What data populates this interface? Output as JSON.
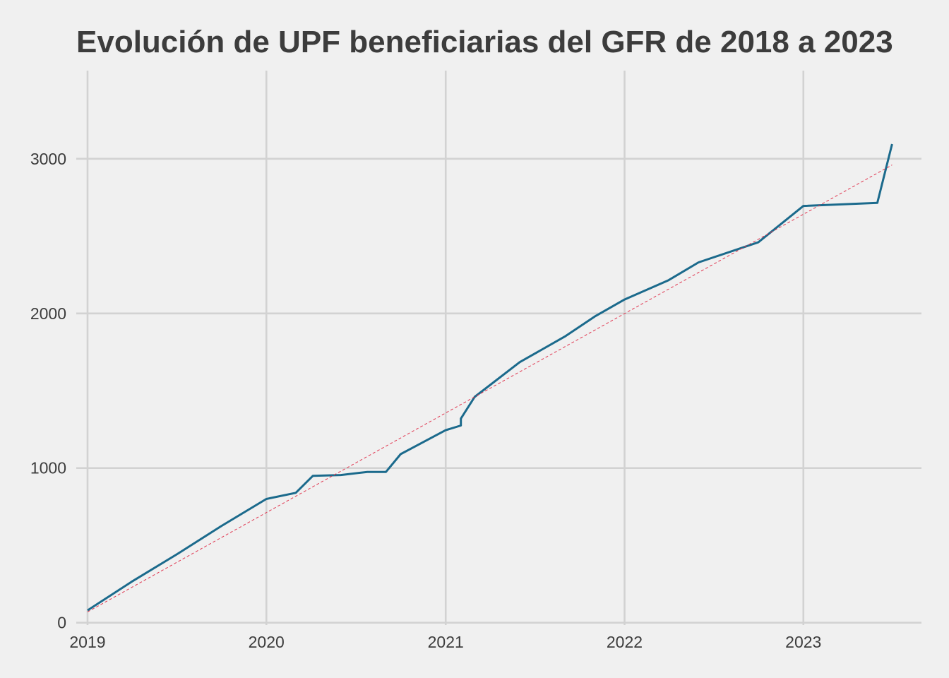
{
  "chart_data": {
    "type": "line",
    "title": "Evolución de UPF beneficiarias del GFR de 2018 a 2023",
    "xlabel": "",
    "ylabel": "",
    "x_ticks": [
      "2019",
      "2020",
      "2021",
      "2022",
      "2023"
    ],
    "y_ticks": [
      "0",
      "1000",
      "2000",
      "3000"
    ],
    "xlim": [
      "2018-12-09",
      "2023-08-30"
    ],
    "ylim": [
      -15,
      3570
    ],
    "grid": true,
    "legend": "none",
    "series": [
      {
        "color": "#1b6a8c",
        "points": [
          {
            "x": "2019-01-01",
            "y": 80
          },
          {
            "x": "2019-04-01",
            "y": 265
          },
          {
            "x": "2019-07-01",
            "y": 440
          },
          {
            "x": "2019-10-01",
            "y": 625
          },
          {
            "x": "2020-01-01",
            "y": 800
          },
          {
            "x": "2020-03-01",
            "y": 840
          },
          {
            "x": "2020-04-05",
            "y": 950
          },
          {
            "x": "2020-06-01",
            "y": 955
          },
          {
            "x": "2020-07-25",
            "y": 975
          },
          {
            "x": "2020-09-01",
            "y": 975
          },
          {
            "x": "2020-10-01",
            "y": 1090
          },
          {
            "x": "2021-01-01",
            "y": 1245
          },
          {
            "x": "2021-02-01",
            "y": 1275
          },
          {
            "x": "2021-02-01",
            "y": 1320
          },
          {
            "x": "2021-03-01",
            "y": 1460
          },
          {
            "x": "2021-06-01",
            "y": 1685
          },
          {
            "x": "2021-09-01",
            "y": 1850
          },
          {
            "x": "2021-11-01",
            "y": 1980
          },
          {
            "x": "2022-01-01",
            "y": 2090
          },
          {
            "x": "2022-04-01",
            "y": 2215
          },
          {
            "x": "2022-06-01",
            "y": 2330
          },
          {
            "x": "2022-10-01",
            "y": 2460
          },
          {
            "x": "2023-01-01",
            "y": 2695
          },
          {
            "x": "2023-06-01",
            "y": 2715
          },
          {
            "x": "2023-07-01",
            "y": 3095
          }
        ]
      },
      {
        "color": "#e0334d",
        "style": "dashed",
        "points": [
          {
            "x": "2019-01-01",
            "y": 70
          },
          {
            "x": "2023-07-01",
            "y": 2960
          }
        ]
      }
    ]
  }
}
